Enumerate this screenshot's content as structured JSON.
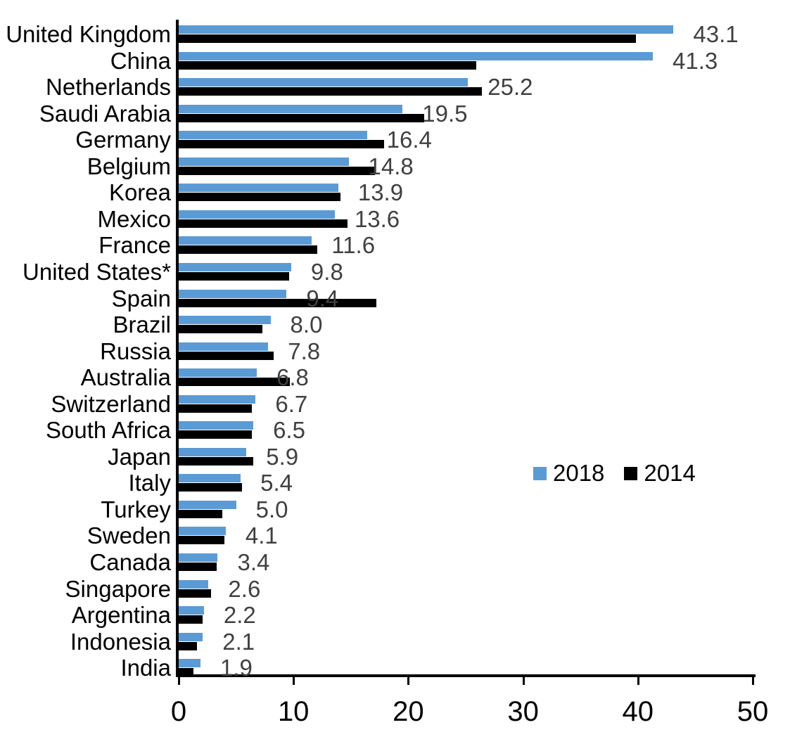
{
  "chart_data": {
    "type": "bar",
    "orientation": "horizontal",
    "title": "",
    "xlabel": "",
    "ylabel": "",
    "xlim": [
      0,
      50
    ],
    "x_ticks": [
      "0",
      "10",
      "20",
      "30",
      "40",
      "50"
    ],
    "grid": false,
    "legend_position": "middle-right",
    "categories": [
      "United Kingdom",
      "China",
      "Netherlands",
      "Saudi Arabia",
      "Germany",
      "Belgium",
      "Korea",
      "Mexico",
      "France",
      "United States*",
      "Spain",
      "Brazil",
      "Russia",
      "Australia",
      "Switzerland",
      "South Africa",
      "Japan",
      "Italy",
      "Turkey",
      "Sweden",
      "Canada",
      "Singapore",
      "Argentina",
      "Indonesia",
      "India"
    ],
    "series": [
      {
        "name": "2018",
        "color": "#5B9BD5",
        "values": [
          43.1,
          41.3,
          25.2,
          19.5,
          16.4,
          14.8,
          13.9,
          13.6,
          11.6,
          9.8,
          9.4,
          8.0,
          7.8,
          6.8,
          6.7,
          6.5,
          5.9,
          5.4,
          5.0,
          4.1,
          3.4,
          2.6,
          2.2,
          2.1,
          1.9
        ]
      },
      {
        "name": "2014",
        "color": "#000000",
        "values": [
          39.8,
          25.9,
          26.4,
          21.4,
          17.9,
          17.1,
          14.1,
          14.7,
          12.1,
          9.6,
          17.2,
          7.3,
          8.3,
          9.7,
          6.4,
          6.4,
          6.5,
          5.5,
          3.8,
          4.0,
          3.3,
          2.8,
          2.1,
          1.6,
          1.3
        ]
      }
    ],
    "data_labels": [
      "43.1",
      "41.3",
      "25.2",
      "19.5",
      "16.4",
      "14.8",
      "13.9",
      "13.6",
      "11.6",
      "9.8",
      "9.4",
      "8.0",
      "7.8",
      "6.8",
      "6.7",
      "6.5",
      "5.9",
      "5.4",
      "5.0",
      "4.1",
      "3.4",
      "2.6",
      "2.2",
      "2.1",
      "1.9"
    ],
    "data_label_series": "2018",
    "data_label_color": "#404040",
    "axis_color": "#000000"
  }
}
